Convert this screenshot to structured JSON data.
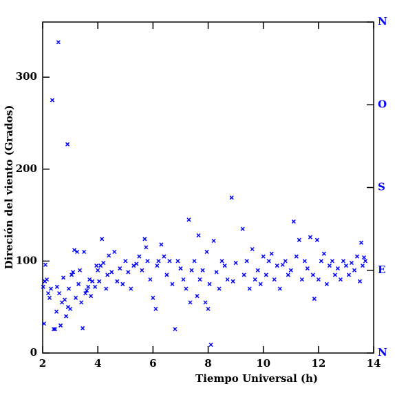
{
  "chart_data": {
    "type": "scatter",
    "x_label": "Tiempo Universal (h)",
    "y_label": "Direción del viento (Grados)",
    "xlim": [
      2,
      14
    ],
    "xticks": [
      2,
      4,
      6,
      8,
      10,
      12,
      14
    ],
    "ylim": [
      0,
      360
    ],
    "yticks": [
      0,
      100,
      200,
      300
    ],
    "y2lim": [
      0,
      360
    ],
    "y2ticks": [
      {
        "value": 0,
        "label": "N"
      },
      {
        "value": 90,
        "label": "E"
      },
      {
        "value": 180,
        "label": "S"
      },
      {
        "value": 270,
        "label": "O"
      },
      {
        "value": 360,
        "label": "N"
      }
    ],
    "series": [
      {
        "color": "#0000ff",
        "x": [
          2.02,
          2.05,
          2.08,
          2.1,
          2.15,
          2.2,
          2.25,
          2.3,
          2.35,
          2.4,
          2.45,
          2.5,
          2.52,
          2.57,
          2.6,
          2.65,
          2.7,
          2.75,
          2.8,
          2.85,
          2.9,
          2.92,
          2.95,
          3.0,
          3.05,
          3.1,
          3.15,
          3.2,
          3.25,
          3.3,
          3.35,
          3.4,
          3.45,
          3.5,
          3.55,
          3.6,
          3.65,
          3.7,
          3.75,
          3.8,
          3.9,
          3.95,
          4.0,
          4.05,
          4.1,
          4.15,
          4.2,
          4.3,
          4.35,
          4.4,
          4.5,
          4.6,
          4.7,
          4.8,
          4.9,
          5.0,
          5.1,
          5.2,
          5.3,
          5.4,
          5.5,
          5.6,
          5.7,
          5.75,
          5.8,
          5.9,
          6.0,
          6.1,
          6.15,
          6.2,
          6.3,
          6.4,
          6.5,
          6.6,
          6.7,
          6.8,
          6.9,
          7.0,
          7.1,
          7.2,
          7.3,
          7.35,
          7.4,
          7.5,
          7.6,
          7.65,
          7.7,
          7.8,
          7.9,
          7.95,
          8.0,
          8.05,
          8.1,
          8.2,
          8.3,
          8.4,
          8.5,
          8.6,
          8.7,
          8.85,
          8.9,
          9.0,
          9.25,
          9.3,
          9.4,
          9.5,
          9.6,
          9.7,
          9.8,
          9.9,
          10.0,
          10.1,
          10.2,
          10.3,
          10.4,
          10.5,
          10.6,
          10.7,
          10.8,
          10.9,
          11.0,
          11.1,
          11.2,
          11.3,
          11.4,
          11.5,
          11.6,
          11.7,
          11.8,
          11.85,
          11.95,
          12.0,
          12.1,
          12.2,
          12.3,
          12.4,
          12.5,
          12.6,
          12.7,
          12.8,
          12.9,
          13.0,
          13.1,
          13.2,
          13.3,
          13.4,
          13.5,
          13.55,
          13.6,
          13.65,
          13.7
        ],
        "values": [
          72,
          32,
          78,
          96,
          80,
          65,
          60,
          70,
          275,
          26,
          26,
          45,
          72,
          338,
          65,
          30,
          55,
          82,
          58,
          40,
          227,
          50,
          70,
          48,
          85,
          88,
          112,
          60,
          110,
          75,
          90,
          55,
          27,
          110,
          65,
          68,
          72,
          80,
          62,
          78,
          72,
          95,
          90,
          78,
          95,
          124,
          98,
          70,
          85,
          106,
          88,
          110,
          78,
          92,
          75,
          100,
          88,
          70,
          95,
          97,
          105,
          90,
          124,
          115,
          100,
          80,
          60,
          48,
          95,
          100,
          118,
          105,
          85,
          100,
          75,
          26,
          100,
          92,
          80,
          70,
          145,
          55,
          90,
          100,
          62,
          128,
          80,
          90,
          55,
          110,
          48,
          75,
          9,
          122,
          88,
          70,
          100,
          95,
          80,
          169,
          78,
          98,
          135,
          85,
          100,
          70,
          113,
          80,
          90,
          75,
          105,
          85,
          100,
          108,
          80,
          95,
          70,
          96,
          100,
          85,
          90,
          143,
          105,
          123,
          80,
          100,
          92,
          126,
          85,
          59,
          123,
          80,
          100,
          108,
          75,
          95,
          100,
          85,
          92,
          80,
          100,
          95,
          85,
          98,
          90,
          105,
          78,
          120,
          95,
          104,
          100
        ]
      }
    ]
  }
}
